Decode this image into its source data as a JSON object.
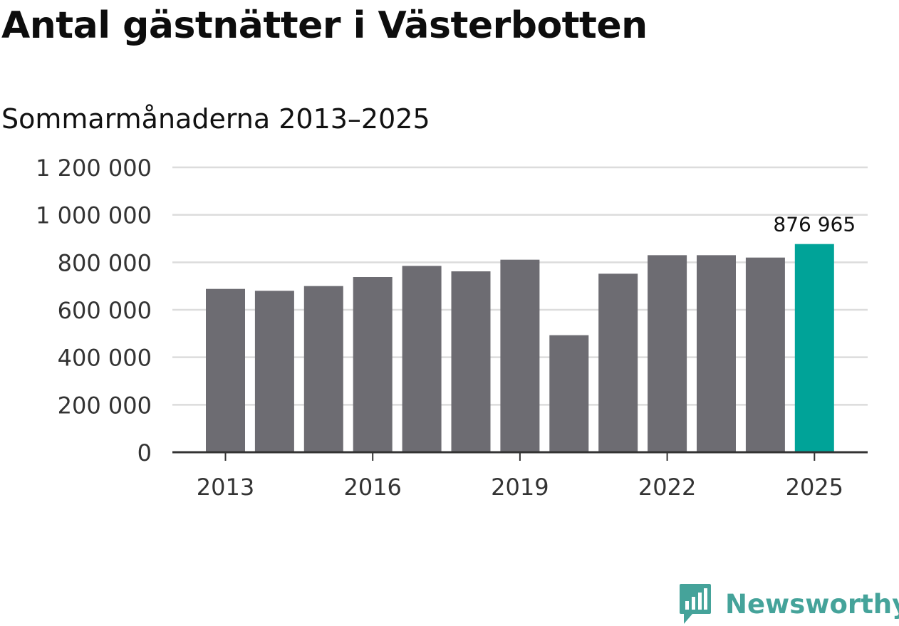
{
  "title": "Antal gästnätter i Västerbotten",
  "subtitle": "Sommarmånaderna 2013–2025",
  "brand": {
    "name": "Newsworthy",
    "color": "#45a39a",
    "icon": "newsworthy-logo-icon"
  },
  "colors": {
    "bar": "#6d6c72",
    "highlight": "#00a398",
    "grid": "#dcdcdc",
    "axis": "#333333",
    "text": "#333333"
  },
  "chart_data": {
    "type": "bar",
    "title": "Antal gästnätter i Västerbotten",
    "subtitle": "Sommarmånaderna 2013–2025",
    "xlabel": "",
    "ylabel": "",
    "categories": [
      "2013",
      "2014",
      "2015",
      "2016",
      "2017",
      "2018",
      "2019",
      "2020",
      "2021",
      "2022",
      "2023",
      "2024",
      "2025"
    ],
    "values": [
      688000,
      680000,
      700000,
      738000,
      785000,
      762000,
      811000,
      493000,
      752000,
      830000,
      830000,
      820000,
      876965
    ],
    "highlight_index": 12,
    "data_label": "876 965",
    "x_tick_labels": [
      "2013",
      "2016",
      "2019",
      "2022",
      "2025"
    ],
    "y_tick_labels": [
      "0",
      "200 000",
      "400 000",
      "600 000",
      "800 000",
      "1 000 000",
      "1 200 000"
    ],
    "y_ticks": [
      0,
      200000,
      400000,
      600000,
      800000,
      1000000,
      1200000
    ],
    "ylim": [
      0,
      1200000
    ],
    "grid": true,
    "legend": "none"
  }
}
